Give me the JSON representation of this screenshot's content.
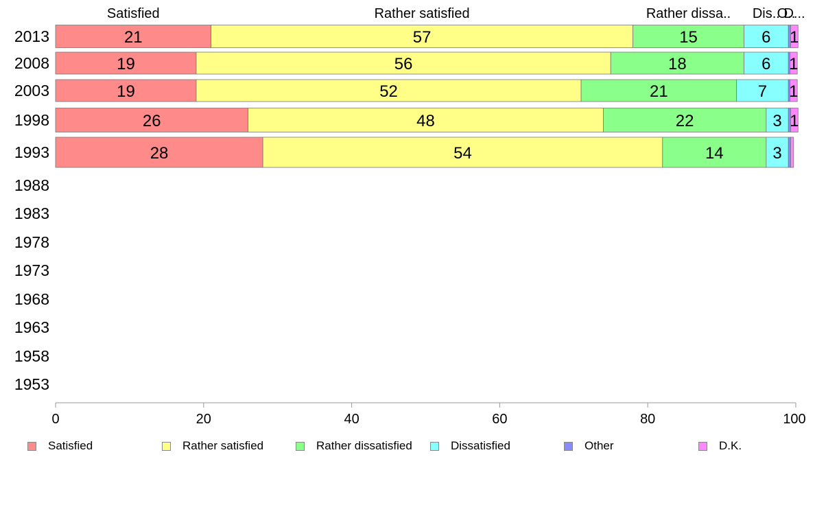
{
  "chart_data": {
    "type": "bar",
    "orientation": "horizontal",
    "stacked": true,
    "categories": [
      "2013",
      "2008",
      "2003",
      "1998",
      "1993",
      "1988",
      "1983",
      "1978",
      "1973",
      "1968",
      "1963",
      "1958",
      "1953"
    ],
    "series": [
      {
        "name": "Satisfied",
        "color": "#ff8a8a",
        "values": [
          21,
          19,
          19,
          26,
          28,
          null,
          null,
          null,
          null,
          null,
          null,
          null,
          null
        ]
      },
      {
        "name": "Rather satisfied",
        "color": "#ffff88",
        "values": [
          57,
          56,
          52,
          48,
          54,
          null,
          null,
          null,
          null,
          null,
          null,
          null,
          null
        ]
      },
      {
        "name": "Rather dissatisfied",
        "color": "#8aff8a",
        "values": [
          15,
          18,
          21,
          22,
          14,
          null,
          null,
          null,
          null,
          null,
          null,
          null,
          null
        ]
      },
      {
        "name": "Dissatisfied",
        "color": "#88ffff",
        "values": [
          6,
          6,
          7,
          3,
          3,
          null,
          null,
          null,
          null,
          null,
          null,
          null,
          null
        ]
      },
      {
        "name": "Other",
        "color": "#8a8aff",
        "values": [
          0.3,
          0.2,
          0.2,
          0.3,
          0.3,
          null,
          null,
          null,
          null,
          null,
          null,
          null,
          null
        ]
      },
      {
        "name": "D.K.",
        "color": "#ff88ff",
        "values": [
          1,
          1,
          1,
          1,
          0.4,
          null,
          null,
          null,
          null,
          null,
          null,
          null,
          null
        ]
      }
    ],
    "bar_labels": [
      [
        "21",
        "57",
        "15",
        "6",
        "",
        "1"
      ],
      [
        "19",
        "56",
        "18",
        "6",
        "",
        "1"
      ],
      [
        "19",
        "52",
        "21",
        "7",
        "",
        "1"
      ],
      [
        "26",
        "48",
        "22",
        "3",
        "",
        "1"
      ],
      [
        "28",
        "54",
        "14",
        "3",
        "",
        ""
      ]
    ],
    "top_labels": [
      "Satisfied",
      "Rather satisfied",
      "Rather dissa..",
      "Dis..",
      "O..",
      "D..."
    ],
    "xlim": [
      0,
      100
    ],
    "xticks": [
      0,
      20,
      40,
      60,
      80,
      100
    ],
    "grid": false,
    "legend_position": "bottom"
  }
}
